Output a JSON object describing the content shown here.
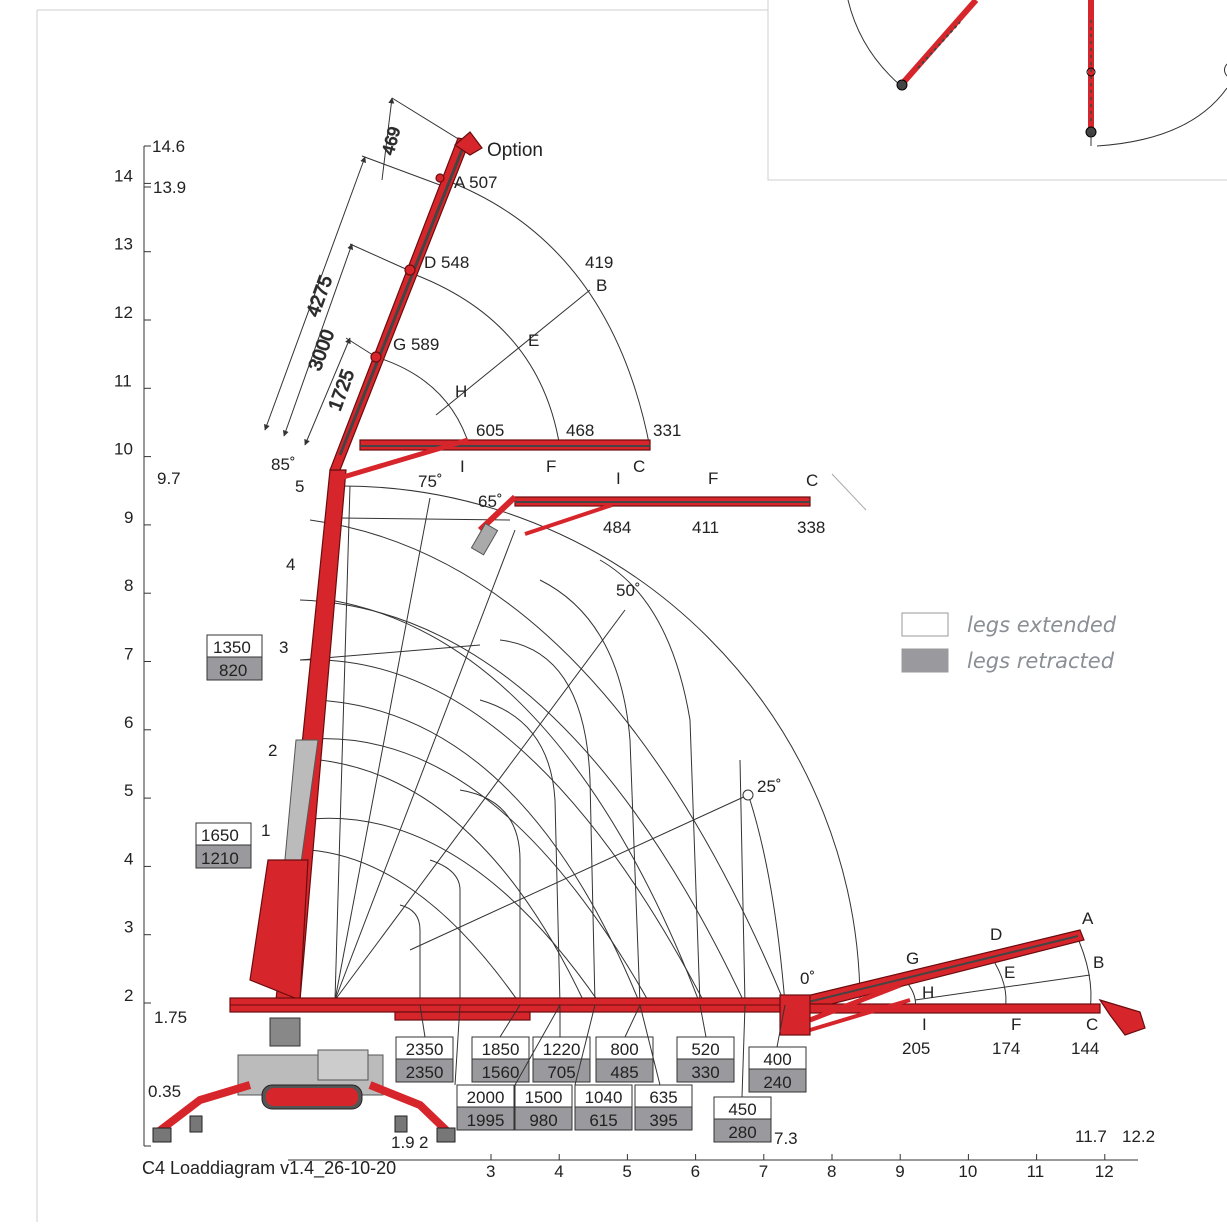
{
  "diagram": {
    "caption": "C4 Loaddiagram v1.4_26-10-20",
    "option_label": "Option",
    "legend": {
      "extended": "legs extended",
      "retracted": "legs retracted",
      "extended_color": "#ffffff",
      "retracted_color": "#9a9a9e"
    },
    "crane_color": "#d7262b",
    "y_axis": {
      "ticks": [
        "2",
        "3",
        "4",
        "5",
        "6",
        "7",
        "8",
        "9",
        "10",
        "11",
        "12",
        "13",
        "14"
      ],
      "marks": [
        "14.6",
        "13.9",
        "9.7",
        "1.75",
        "0.35"
      ]
    },
    "x_axis": {
      "ticks": [
        "3",
        "4",
        "5",
        "6",
        "7",
        "8",
        "9",
        "10",
        "11",
        "12"
      ],
      "marks": [
        "1.9",
        "2",
        "7.3",
        "11.7",
        "12.2"
      ]
    },
    "dimensions": [
      "469",
      "4275",
      "3000",
      "1725"
    ],
    "angles": [
      "85˚",
      "75˚",
      "65˚",
      "50˚",
      "25˚",
      "0˚"
    ],
    "radii": [
      "1",
      "2",
      "3",
      "4",
      "5"
    ],
    "top_points": [
      {
        "id": "A",
        "load": "507"
      },
      {
        "id": "D",
        "load": "548"
      },
      {
        "id": "G",
        "load": "589"
      },
      {
        "id": "B",
        "load": "419"
      },
      {
        "id": "E",
        "load": ""
      },
      {
        "id": "H",
        "load": ""
      }
    ],
    "boom_85": {
      "loads": [
        "605",
        "468",
        "331"
      ],
      "ids": [
        "I",
        "F",
        "C"
      ]
    },
    "boom_65": {
      "loads": [
        "484",
        "411",
        "338"
      ],
      "ids": [
        "I",
        "F",
        "C"
      ]
    },
    "boom_0": {
      "loads": [
        "205",
        "174",
        "144"
      ],
      "ids": [
        "I",
        "F",
        "C"
      ],
      "upper_ids": [
        "A",
        "B",
        "D",
        "E",
        "G",
        "H"
      ]
    },
    "left_boxes": [
      {
        "extended": "1350",
        "retracted": "820"
      },
      {
        "extended": "1650",
        "retracted": "1210"
      }
    ],
    "bottom_boxes_row1": [
      {
        "extended": "2350",
        "retracted": "2350"
      },
      {
        "extended": "1850",
        "retracted": "1560"
      },
      {
        "extended": "1220",
        "retracted": "705"
      },
      {
        "extended": "800",
        "retracted": "485"
      },
      {
        "extended": "520",
        "retracted": "330"
      },
      {
        "extended": "400",
        "retracted": "240"
      }
    ],
    "bottom_boxes_row2": [
      {
        "extended": "2000",
        "retracted": "1995"
      },
      {
        "extended": "1500",
        "retracted": "980"
      },
      {
        "extended": "1040",
        "retracted": "615"
      },
      {
        "extended": "635",
        "retracted": "395"
      },
      {
        "extended": "450",
        "retracted": "280"
      }
    ]
  }
}
